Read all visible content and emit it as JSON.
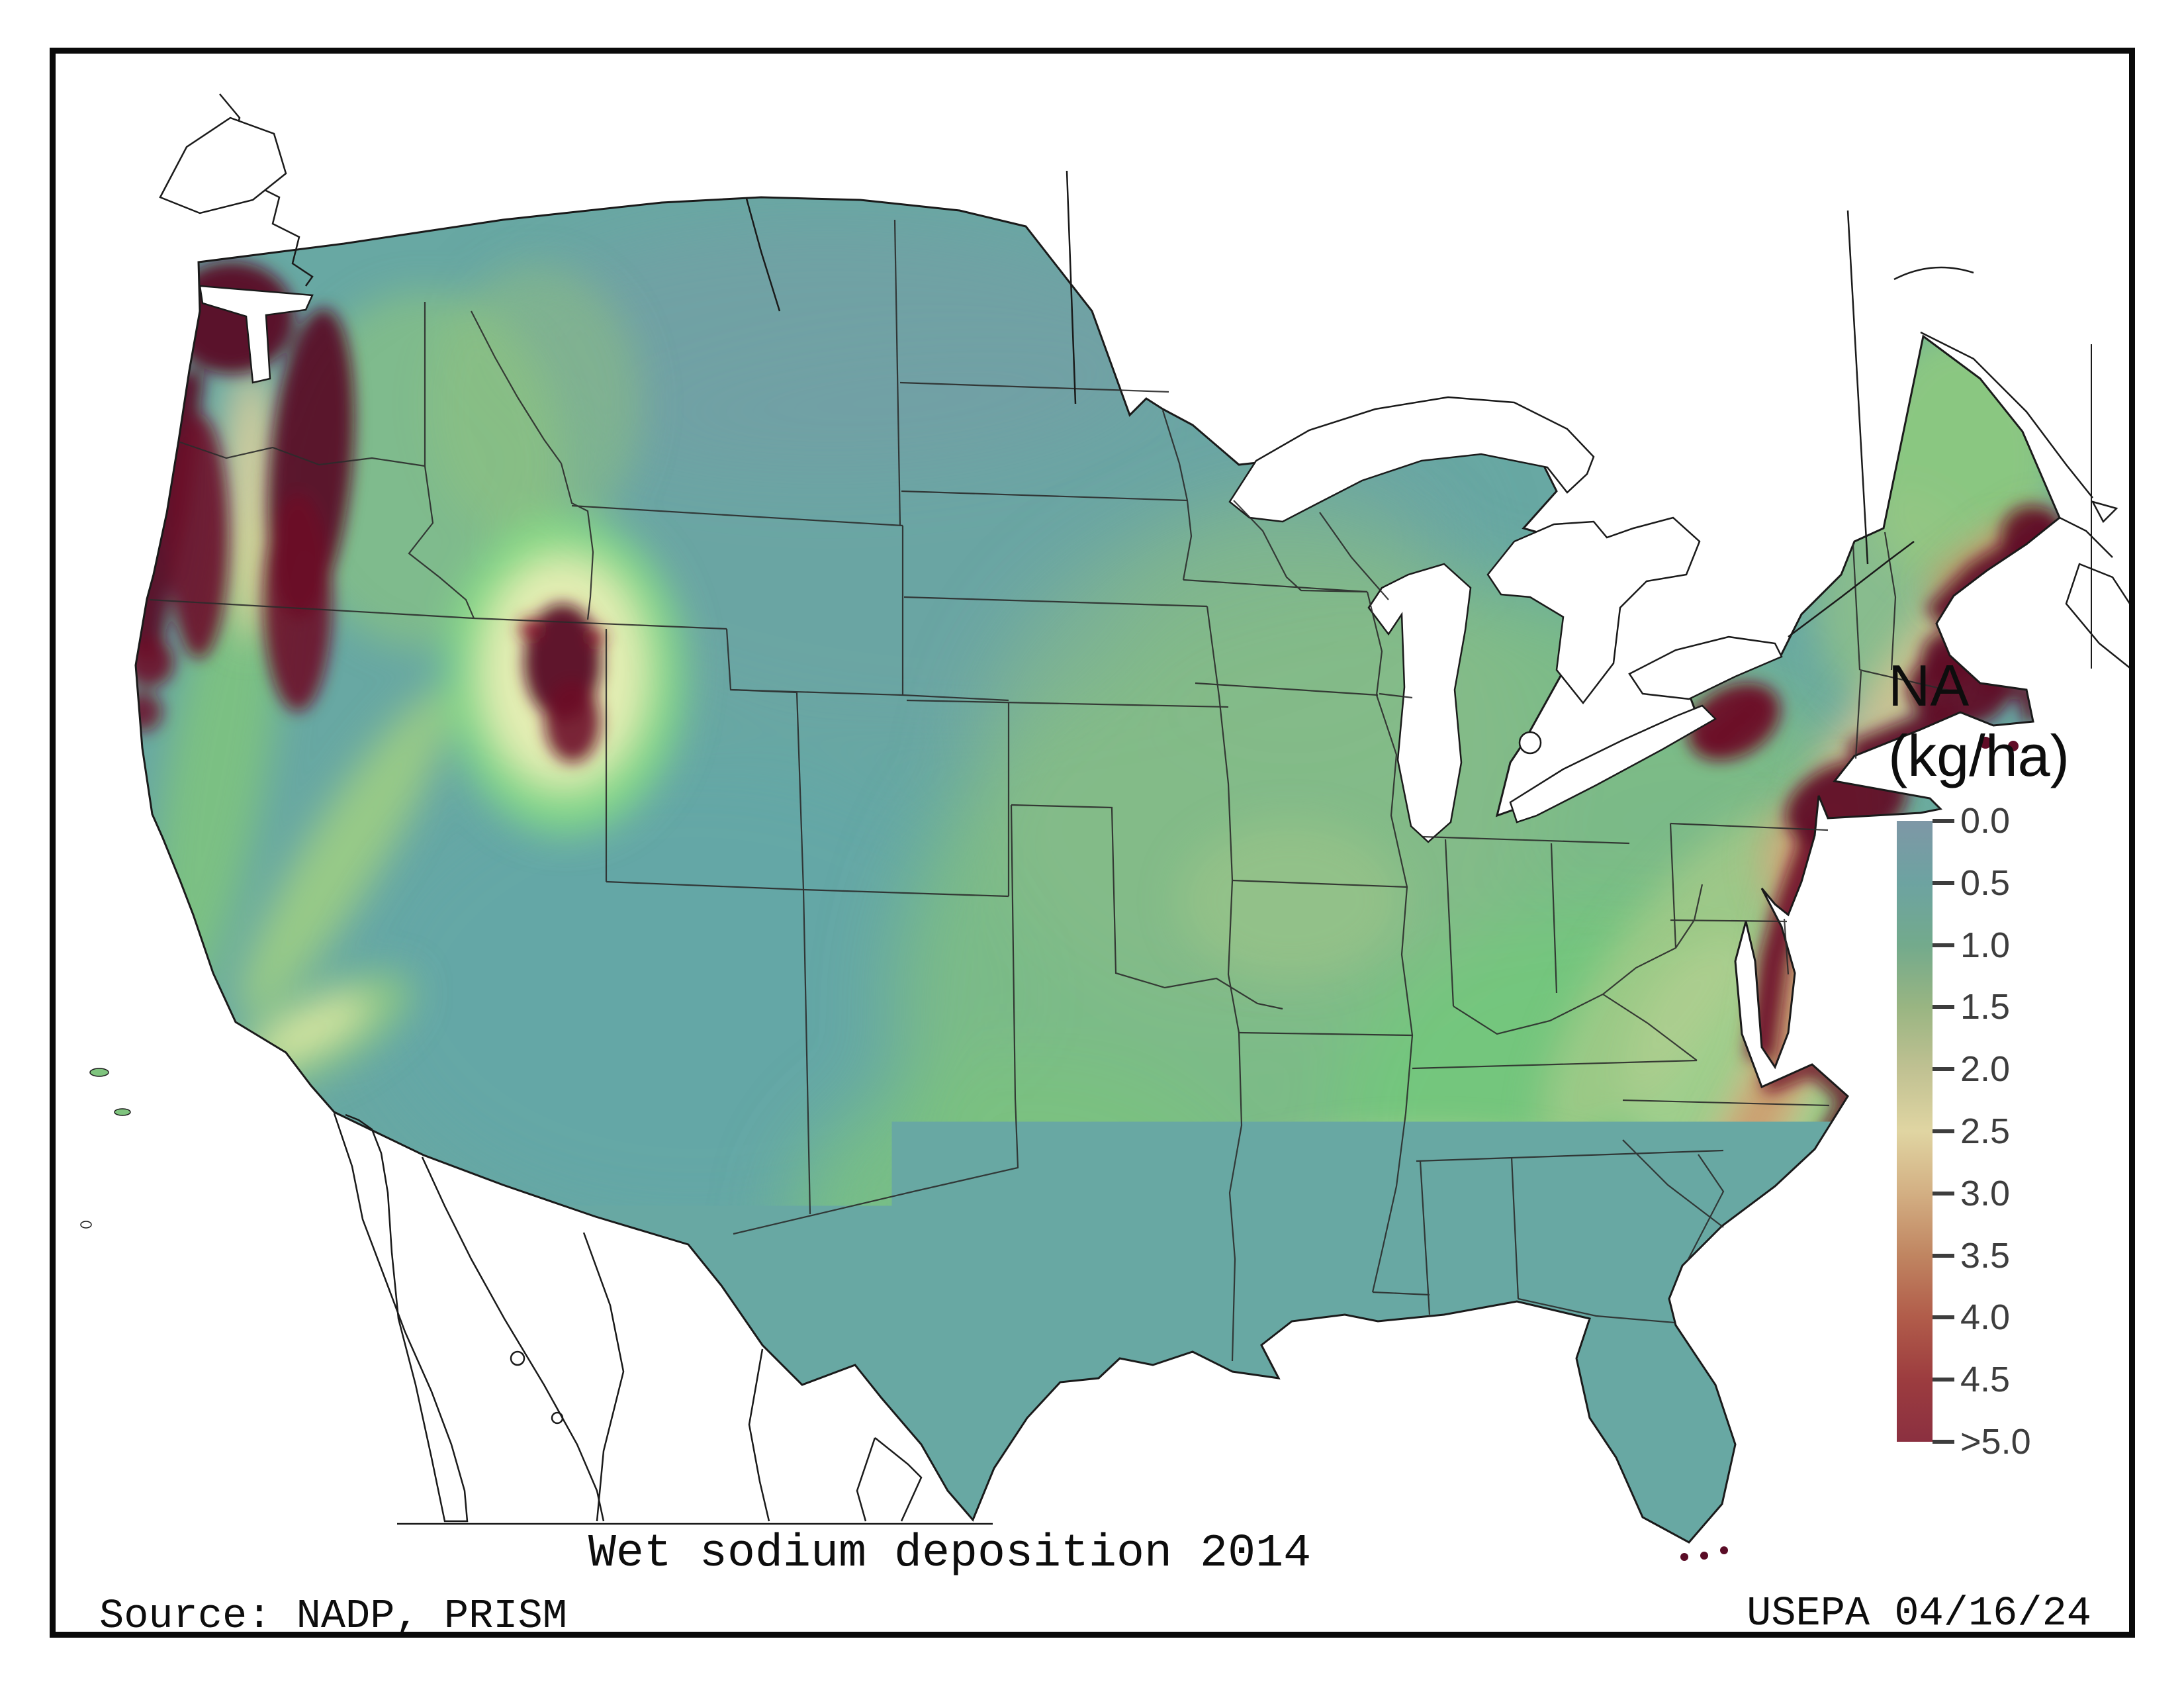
{
  "map": {
    "title": "Wet sodium deposition 2014",
    "source": "Source: NADP, PRISM",
    "agency_date": "USEPA 04/16/24",
    "region": "Conterminous United States with Canada and Mexico outlines"
  },
  "legend": {
    "title_line1": "NA",
    "title_line2": "(kg/ha)",
    "tick_labels": [
      "0.0",
      "0.5",
      "1.0",
      "1.5",
      "2.0",
      "2.5",
      "3.0",
      "3.5",
      "4.0",
      "4.5",
      ">5.0"
    ],
    "colorbar_stops": [
      "#7e97a6",
      "#6da3a1",
      "#73aa8c",
      "#99b582",
      "#c0c192",
      "#e0d5a2",
      "#d3af83",
      "#c08561",
      "#b15c4a",
      "#9c3c3f",
      "#8b3040"
    ]
  },
  "chart_data": {
    "type": "heatmap",
    "title": "Wet sodium deposition 2014",
    "variable": "NA (kg/ha)",
    "scale_min": 0.0,
    "scale_max_label": ">5.0",
    "scale_ticks": [
      0.0,
      0.5,
      1.0,
      1.5,
      2.0,
      2.5,
      3.0,
      3.5,
      4.0,
      4.5,
      5.0
    ],
    "legend_position": "right",
    "high_deposition_regions": [
      "Pacific Northwest coast and Cascades",
      "Northern California coast",
      "Great Salt Lake area (Utah)",
      "Gulf Coast (Texas to Florida panhandle)",
      "Florida peninsula",
      "Atlantic coastline (Georgia to Maine)",
      "Eastern Lake Ontario shore",
      "Coastal New Jersey / Long Island / southern New England"
    ],
    "low_deposition_regions": [
      "Northern Great Plains",
      "Interior Mountain West",
      "Upper Midwest",
      "Interior Northeast"
    ]
  },
  "colors": {
    "map_base_teal": "#68a8a3",
    "map_green": "#7fbe83",
    "map_pale_yellow": "#e9dca6",
    "map_orange": "#c57e55",
    "map_maroon": "#6d1128",
    "map_dark_maroon": "#5a0c26",
    "outline_black": "#1a1a1a",
    "tick_gray": "#3d3d3d"
  }
}
